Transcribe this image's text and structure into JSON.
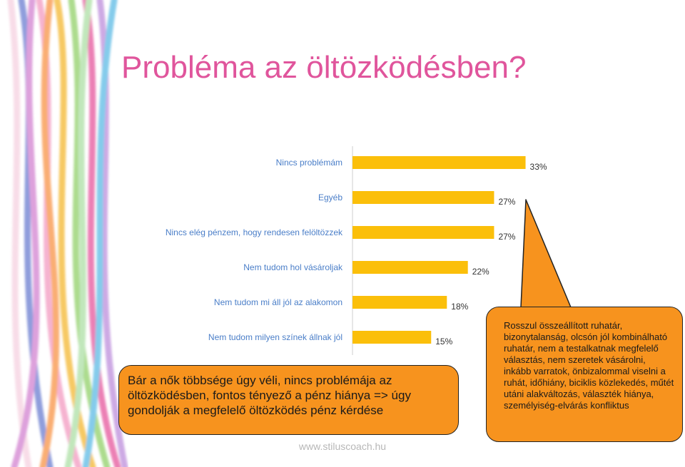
{
  "title": "Probléma az öltözködésben?",
  "chart_data": {
    "type": "bar",
    "orientation": "horizontal",
    "categories": [
      "Nincs problémám",
      "Egyéb",
      "Nincs elég pénzem, hogy rendesen felöltözzek",
      "Nem tudom hol vásároljak",
      "Nem tudom mi áll jól az alakomon",
      "Nem tudom milyen színek állnak jól"
    ],
    "values": [
      33,
      27,
      27,
      22,
      18,
      15
    ],
    "value_labels": [
      "33%",
      "27%",
      "27%",
      "22%",
      "18%",
      "15%"
    ],
    "xlim": [
      0,
      35
    ],
    "grid": false,
    "bar_color": "#fbbf0a"
  },
  "callout_left": {
    "text": "Bár a nők többsége úgy véli, nincs problémája az öltözködésben, fontos tényező a pénz hiánya => úgy gondolják a megfelelő öltözködés pénz kérdése"
  },
  "callout_right": {
    "text": "Rosszul összeállított ruhatár, bizonytalanság, olcsón jól kombinálható ruhatár, nem a testalkatnak megfelelő választás, nem szeretek vásárolni, inkább varratok, önbizalommal viselni a ruhát, időhiány, biciklis közlekedés, műtét utáni alakváltozás, választék hiánya, személyiség-elvárás konfliktus"
  },
  "footer": "www.stiluscoach.hu",
  "colors": {
    "title": "#e0559c",
    "callout": "#f7931e",
    "category_text": "#4a7ec8"
  }
}
